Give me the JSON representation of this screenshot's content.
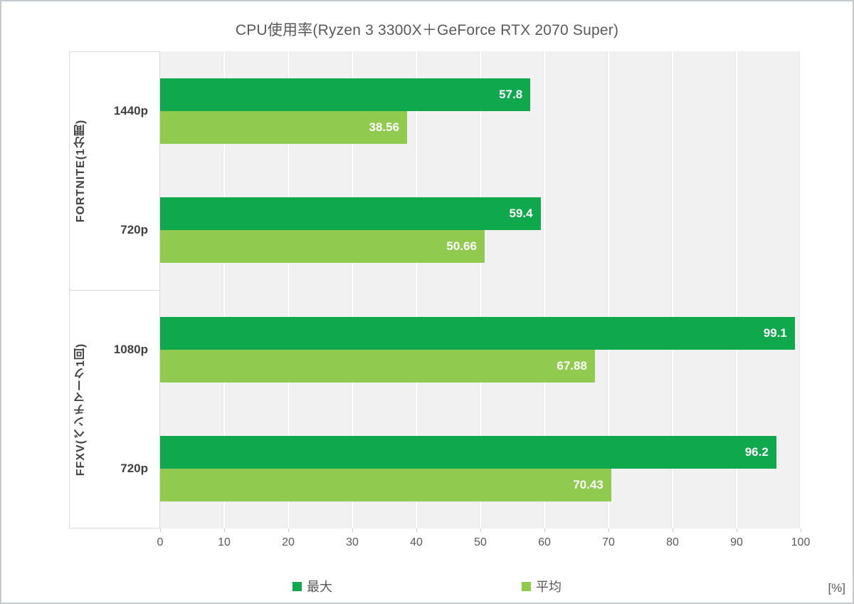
{
  "title": "CPU使用率(Ryzen 3 3300X＋GeForce RTX 2070  Super)",
  "axis_unit": "[%]",
  "legend": [
    {
      "label": "最大",
      "color": "#0fa84c"
    },
    {
      "label": "平均",
      "color": "#90cb4f"
    }
  ],
  "colors": {
    "max_bar": "#0fa84c",
    "avg_bar": "#90cb4f",
    "plot_background": "#f1f1f2",
    "gridline": "#ffffff",
    "axis_line": "#d9d9d9",
    "text_gray": "#595959",
    "label_dark": "#404040"
  },
  "chart_data": {
    "type": "bar",
    "orientation": "horizontal",
    "title": "CPU使用率(Ryzen 3 3300X＋GeForce RTX 2070  Super)",
    "xlabel": "[%]",
    "ylabel": "",
    "xlim": [
      0,
      100
    ],
    "xticks": [
      0,
      10,
      20,
      30,
      40,
      50,
      60,
      70,
      80,
      90,
      100
    ],
    "grid": true,
    "legend_position": "bottom",
    "series_names": [
      "最大",
      "平均"
    ],
    "groups": [
      {
        "label": "FORTNITE(1分間)",
        "categories": [
          {
            "label": "1440p",
            "values": {
              "最大": 57.8,
              "平均": 38.56
            }
          },
          {
            "label": "720p",
            "values": {
              "最大": 59.4,
              "平均": 50.66
            }
          }
        ]
      },
      {
        "label": "FFXV(ベンチマーク1回)",
        "categories": [
          {
            "label": "1080p",
            "values": {
              "最大": 99.1,
              "平均": 67.88
            }
          },
          {
            "label": "720p",
            "values": {
              "最大": 96.2,
              "平均": 70.43
            }
          }
        ]
      }
    ]
  }
}
